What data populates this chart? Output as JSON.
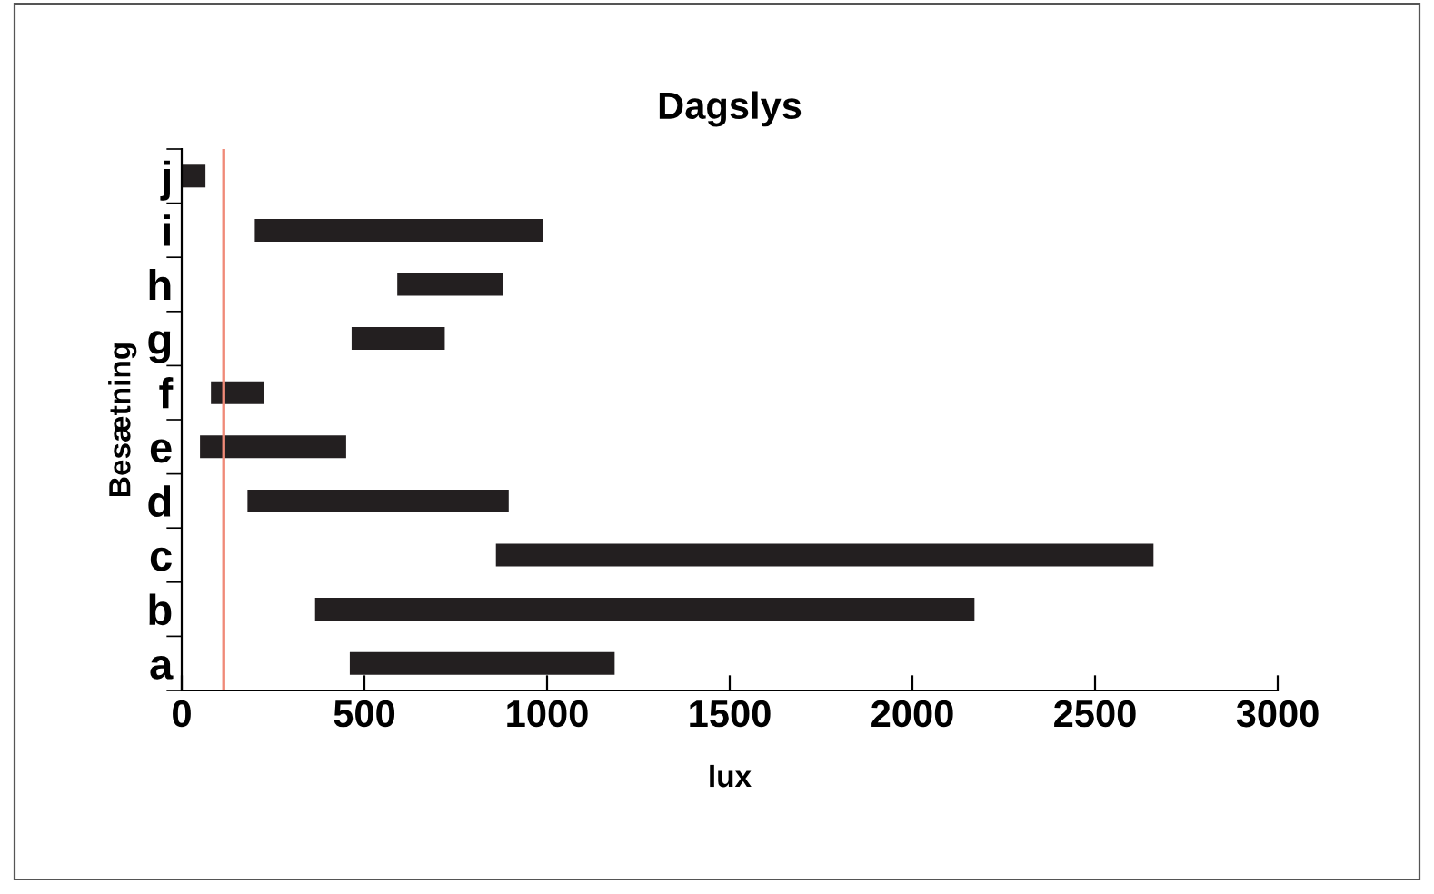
{
  "chart_data": {
    "type": "bar",
    "orientation": "horizontal",
    "title": "Dagslys",
    "xlabel": "lux",
    "ylabel": "Besætning",
    "categories": [
      "j",
      "i",
      "h",
      "g",
      "f",
      "e",
      "d",
      "c",
      "b",
      "a"
    ],
    "base": [
      0,
      200,
      590,
      465,
      80,
      50,
      180,
      860,
      365,
      460
    ],
    "values": [
      65,
      790,
      290,
      255,
      145,
      400,
      715,
      1800,
      1805,
      725
    ],
    "color": "#231f20",
    "xlim": [
      0,
      3000
    ],
    "xticks": [
      0,
      500,
      1000,
      1500,
      2000,
      2500,
      3000
    ],
    "ref_lines": [
      {
        "axis": "x",
        "value": 115,
        "color": "#f08a78"
      }
    ],
    "grid": false,
    "legend": false
  }
}
